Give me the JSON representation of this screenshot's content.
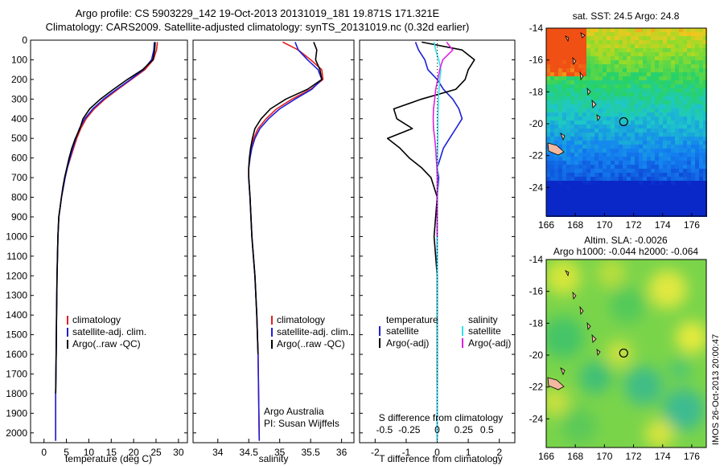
{
  "header": {
    "line1": "Argo profile: CS 5903229_142 19-Oct-2013 20131019_181 19.871S 171.321E",
    "line2": "Climatology: CARS2009. Satellite-adjusted climatology: synTS_20131019.nc (0.32d earlier)"
  },
  "panels": {
    "temperature": {
      "xlabel": "temperature (deg C)",
      "legend": [
        "climatology",
        "satellite-adj. clim.",
        "Argo(..raw -QC)"
      ]
    },
    "salinity": {
      "xlabel": "salinity",
      "legend": [
        "climatology",
        "satellite-adj. clim.",
        "Argo(..raw -QC)"
      ],
      "note1": "Argo Australia",
      "note2": "PI: Susan Wijffels"
    },
    "difference": {
      "xlabel": "T difference from climatology",
      "top_axis_label": "S difference from climatology",
      "legend_temp_title": "temperature",
      "legend_sal_title": "salinity",
      "legend_temp": [
        "satellite",
        "Argo(-adj)"
      ],
      "legend_sal": [
        "satellite",
        "Argo(-adj)"
      ]
    },
    "sst_map": {
      "title": "sat. SST: 24.5 Argo: 24.8",
      "yticks": [
        "-14",
        "-16",
        "-18",
        "-20",
        "-22",
        "-24"
      ],
      "xticks": [
        "166",
        "168",
        "170",
        "172",
        "174",
        "176"
      ]
    },
    "sla_map": {
      "title1": "Altim. SLA: -0.0026",
      "title2": "Argo h1000: -0.044 h2000: -0.064",
      "yticks": [
        "-14",
        "-16",
        "-18",
        "-20",
        "-22",
        "-24"
      ],
      "xticks": [
        "166",
        "168",
        "170",
        "172",
        "174",
        "176"
      ]
    },
    "side_label": "IMOS 26-Oct-2013 20:00:47"
  },
  "colors": {
    "climatology": "#e52020",
    "satellite": "#1f1fd8",
    "argo": "#000000",
    "sat_sal": "#33e0e6",
    "argo_sal": "#e020e0"
  },
  "chart_data": [
    {
      "type": "line",
      "xlabel": "temperature (deg C)",
      "ylabel": "",
      "xlim": [
        -3,
        32
      ],
      "ylim": [
        2050,
        0
      ],
      "xticks": [
        0,
        5,
        10,
        15,
        20,
        25,
        30
      ],
      "yticks": [
        0,
        100,
        200,
        300,
        400,
        500,
        600,
        700,
        800,
        900,
        1000,
        1100,
        1200,
        1300,
        1400,
        1500,
        1600,
        1700,
        1800,
        1900,
        2000
      ],
      "series": [
        {
          "name": "climatology",
          "x": [
            25.3,
            25.1,
            24.4,
            22.5,
            19.5,
            16.5,
            13.6,
            11.2,
            9.4,
            8.2,
            7.3,
            6.6,
            5.9,
            5.2,
            4.7,
            4.3,
            3.9,
            3.6,
            3.3,
            3.1,
            2.9,
            2.8,
            2.7,
            2.6,
            2.6
          ],
          "y": [
            10,
            50,
            100,
            150,
            200,
            250,
            300,
            350,
            400,
            450,
            500,
            550,
            600,
            650,
            700,
            750,
            800,
            850,
            900,
            1000,
            1200,
            1400,
            1600,
            1800,
            2040
          ]
        },
        {
          "name": "satellite-adj. clim.",
          "x": [
            24.6,
            24.5,
            24.0,
            22.2,
            19.3,
            16.2,
            13.3,
            10.9,
            9.1,
            7.9,
            7.1,
            6.4,
            5.8,
            5.2,
            4.7,
            4.3,
            3.9,
            3.6,
            3.3,
            3.1,
            2.9,
            2.8,
            2.7,
            2.6,
            2.6
          ],
          "y": [
            10,
            50,
            100,
            150,
            200,
            250,
            300,
            350,
            400,
            450,
            500,
            550,
            600,
            650,
            700,
            750,
            800,
            850,
            900,
            1000,
            1200,
            1400,
            1600,
            1800,
            2040
          ]
        },
        {
          "name": "Argo(..raw -QC)",
          "x": [
            24.8,
            24.7,
            24.3,
            22.0,
            18.6,
            15.5,
            12.6,
            10.2,
            8.7,
            8.0,
            7.0,
            6.2,
            5.6,
            5.1,
            4.6,
            4.2,
            3.9,
            3.6,
            3.3,
            3.1,
            2.9,
            2.8,
            2.7,
            2.6
          ],
          "y": [
            10,
            50,
            100,
            150,
            200,
            250,
            300,
            350,
            400,
            450,
            500,
            550,
            600,
            650,
            700,
            750,
            800,
            850,
            900,
            1000,
            1200,
            1400,
            1600,
            1800
          ]
        }
      ]
    },
    {
      "type": "line",
      "xlabel": "salinity",
      "ylabel": "",
      "xlim": [
        33.6,
        36.2
      ],
      "ylim": [
        2050,
        0
      ],
      "xticks": [
        34,
        34.5,
        35,
        35.5,
        36
      ],
      "series": [
        {
          "name": "climatology",
          "x": [
            35.05,
            35.3,
            35.5,
            35.68,
            35.7,
            35.5,
            35.2,
            34.95,
            34.78,
            34.65,
            34.58,
            34.54,
            34.52,
            34.5,
            34.5,
            34.52,
            34.55,
            34.6,
            34.63,
            34.65,
            34.67
          ],
          "y": [
            10,
            50,
            100,
            150,
            200,
            250,
            300,
            350,
            400,
            450,
            500,
            550,
            600,
            650,
            700,
            800,
            1000,
            1200,
            1400,
            1600,
            2040
          ]
        },
        {
          "name": "satellite-adj. clim.",
          "x": [
            35.25,
            35.3,
            35.45,
            35.62,
            35.68,
            35.52,
            35.25,
            35.0,
            34.82,
            34.68,
            34.6,
            34.55,
            34.52,
            34.5,
            34.5,
            34.52,
            34.55,
            34.6,
            34.63,
            34.65,
            34.67
          ],
          "y": [
            10,
            50,
            100,
            150,
            200,
            250,
            300,
            350,
            400,
            450,
            500,
            550,
            600,
            650,
            700,
            800,
            1000,
            1200,
            1400,
            1600,
            2040
          ]
        },
        {
          "name": "Argo(..raw -QC)",
          "x": [
            35.55,
            35.6,
            35.58,
            35.65,
            35.68,
            35.45,
            35.1,
            34.85,
            34.7,
            34.6,
            34.56,
            34.53,
            34.51,
            34.5,
            34.5,
            34.52,
            34.55,
            34.6,
            34.63,
            34.65
          ],
          "y": [
            10,
            50,
            100,
            150,
            200,
            250,
            300,
            350,
            400,
            450,
            500,
            550,
            600,
            650,
            700,
            800,
            1000,
            1200,
            1400,
            1600
          ]
        }
      ]
    },
    {
      "type": "line",
      "xlabel": "T difference from climatology",
      "ylabel": "",
      "xlim": [
        -2.5,
        2.5
      ],
      "ylim": [
        2050,
        0
      ],
      "xticks": [
        -2,
        -1,
        0,
        1,
        2
      ],
      "top_xticks": [
        "-0.5",
        "-0.25",
        "0",
        "0.25",
        "0.5"
      ],
      "series": [
        {
          "name": "temperature satellite",
          "x": [
            -0.7,
            -0.6,
            -0.4,
            -0.3,
            0.0,
            0.2,
            0.5,
            0.7,
            0.8,
            0.6,
            0.4,
            0.2,
            0.1,
            0.0,
            0.05,
            0.0,
            0.0,
            0.0,
            0.0,
            0.0
          ],
          "y": [
            10,
            50,
            100,
            150,
            200,
            250,
            300,
            350,
            400,
            450,
            500,
            550,
            600,
            650,
            700,
            800,
            1000,
            1200,
            1500,
            2040
          ]
        },
        {
          "name": "temperature Argo(-adj)",
          "x": [
            -0.5,
            0.8,
            1.2,
            1.0,
            0.9,
            0.6,
            -0.5,
            -1.4,
            -1.3,
            -0.8,
            -1.6,
            -1.2,
            -0.9,
            -0.5,
            -0.2,
            0.0,
            -0.1,
            0.0,
            0.0,
            0.0
          ],
          "y": [
            10,
            50,
            100,
            150,
            200,
            250,
            300,
            350,
            400,
            450,
            500,
            550,
            600,
            650,
            700,
            800,
            1000,
            1200,
            1500,
            1750
          ]
        },
        {
          "name": "salinity satellite",
          "x": [
            -0.1,
            -0.05,
            0.05,
            0.12,
            0.08,
            0.06,
            0.04,
            0.03,
            0.02,
            0.02,
            0.01,
            0.01,
            0.01,
            0.0,
            0.0,
            0.0,
            0.0,
            0.0
          ],
          "y": [
            10,
            50,
            100,
            150,
            200,
            250,
            300,
            350,
            400,
            500,
            600,
            700,
            800,
            1000,
            1200,
            1500,
            1800,
            2040
          ]
        },
        {
          "name": "salinity Argo(-adj)",
          "x": [
            0.3,
            0.5,
            0.18,
            0.08,
            0.02,
            -0.05,
            -0.08,
            -0.12,
            -0.13,
            -0.12,
            -0.08,
            -0.05,
            -0.03,
            -0.01,
            0.0,
            0.0,
            0.0
          ],
          "y": [
            10,
            50,
            100,
            150,
            200,
            250,
            300,
            350,
            400,
            450,
            500,
            550,
            600,
            650,
            700,
            800,
            1000
          ]
        }
      ]
    },
    {
      "type": "heatmap",
      "title": "sat. SST: 24.5 Argo: 24.8",
      "xlim": [
        166,
        177
      ],
      "ylim": [
        -25.8,
        -14
      ],
      "xticks": [
        166,
        168,
        170,
        172,
        174,
        176
      ],
      "yticks": [
        -14,
        -16,
        -18,
        -20,
        -22,
        -24
      ],
      "argo_position": [
        171.321,
        -19.871
      ]
    },
    {
      "type": "heatmap",
      "title": "Altim. SLA: -0.0026",
      "xlim": [
        166,
        177
      ],
      "ylim": [
        -25.8,
        -14
      ],
      "xticks": [
        166,
        168,
        170,
        172,
        174,
        176
      ],
      "yticks": [
        -14,
        -16,
        -18,
        -20,
        -22,
        -24
      ],
      "argo_position": [
        171.321,
        -19.871
      ]
    }
  ]
}
